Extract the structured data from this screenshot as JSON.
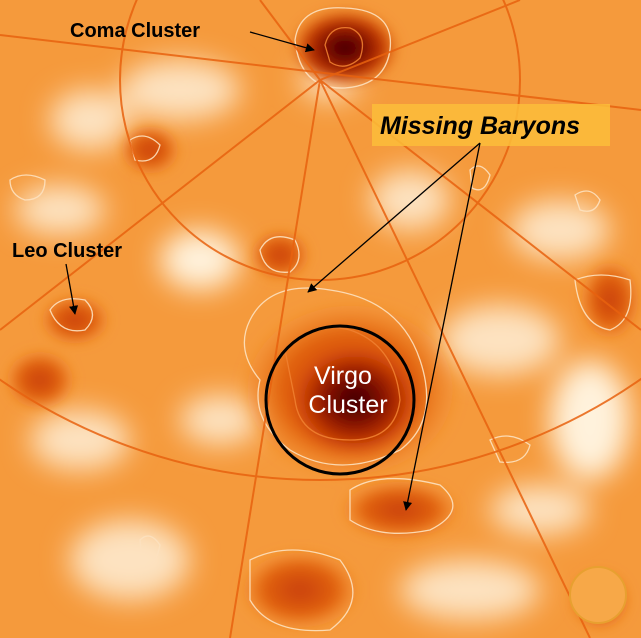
{
  "labels": {
    "coma": "Coma Cluster",
    "leo": "Leo Cluster",
    "missing": "Missing Baryons",
    "virgo_line1": "Virgo",
    "virgo_line2": "Cluster"
  },
  "colors": {
    "background": "#f59a3c",
    "light": "#fde2c0",
    "dense": "#5a0000",
    "label_box": "#fbbd3a",
    "grid": "#e8620f"
  }
}
